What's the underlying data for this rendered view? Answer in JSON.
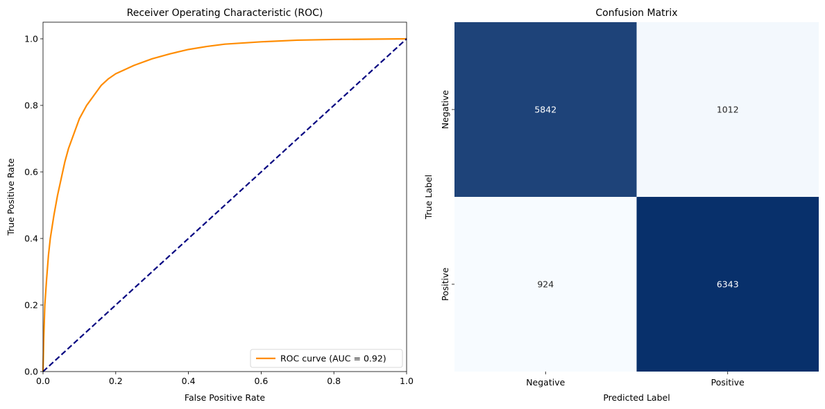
{
  "chart_data": [
    {
      "type": "line",
      "title": "Receiver Operating Characteristic (ROC)",
      "xlabel": "False Positive Rate",
      "ylabel": "True Positive Rate",
      "xlim": [
        0.0,
        1.0
      ],
      "ylim": [
        0.0,
        1.05
      ],
      "xticks": [
        "0.0",
        "0.2",
        "0.4",
        "0.6",
        "0.8",
        "1.0"
      ],
      "yticks": [
        "0.0",
        "0.2",
        "0.4",
        "0.6",
        "0.8",
        "1.0"
      ],
      "grid": false,
      "legend": "lower-right",
      "series": [
        {
          "name": "ROC curve (AUC = 0.92)",
          "color": "#ff8c00",
          "style": "solid",
          "x": [
            0.0,
            0.002,
            0.005,
            0.01,
            0.015,
            0.02,
            0.03,
            0.04,
            0.05,
            0.06,
            0.07,
            0.08,
            0.09,
            0.1,
            0.12,
            0.14,
            0.16,
            0.18,
            0.2,
            0.22,
            0.25,
            0.3,
            0.35,
            0.4,
            0.45,
            0.5,
            0.6,
            0.7,
            0.8,
            0.9,
            1.0
          ],
          "y": [
            0.0,
            0.1,
            0.2,
            0.28,
            0.35,
            0.4,
            0.47,
            0.53,
            0.58,
            0.63,
            0.67,
            0.7,
            0.73,
            0.76,
            0.8,
            0.83,
            0.86,
            0.88,
            0.895,
            0.905,
            0.92,
            0.94,
            0.955,
            0.968,
            0.977,
            0.984,
            0.991,
            0.996,
            0.998,
            0.999,
            1.0
          ]
        },
        {
          "name": "",
          "color": "#000080",
          "style": "dashed",
          "x": [
            0.0,
            1.0
          ],
          "y": [
            0.0,
            1.0
          ]
        }
      ]
    },
    {
      "type": "heatmap",
      "title": "Confusion Matrix",
      "xlabel": "Predicted Label",
      "ylabel": "True Label",
      "x_categories": [
        "Negative",
        "Positive"
      ],
      "y_categories": [
        "Negative",
        "Positive"
      ],
      "values": [
        [
          5842,
          1012
        ],
        [
          924,
          6343
        ]
      ],
      "colormap": "Blues",
      "colors": {
        "low": "#f7fbff",
        "high": "#08306b"
      }
    }
  ]
}
